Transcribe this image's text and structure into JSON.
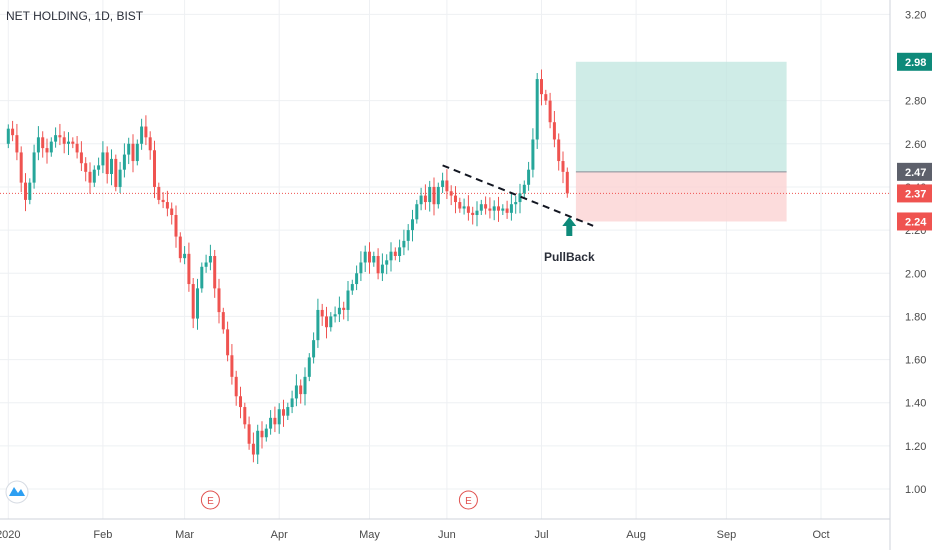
{
  "chart_data": {
    "type": "candlestick",
    "title": "NET HOLDING, 1D, BIST",
    "y_ticks": [
      "1.00",
      "1.20",
      "1.40",
      "1.60",
      "1.80",
      "2.00",
      "2.20",
      "2.40",
      "2.60",
      "2.80",
      "3.20"
    ],
    "y_tick_values": [
      1.0,
      1.2,
      1.4,
      1.6,
      1.8,
      2.0,
      2.2,
      2.4,
      2.6,
      2.8,
      3.2
    ],
    "ylim": [
      0.94,
      3.22
    ],
    "x_ticks": [
      {
        "label": "2020",
        "bar": 0
      },
      {
        "label": "Feb",
        "bar": 22
      },
      {
        "label": "Mar",
        "bar": 41
      },
      {
        "label": "Apr",
        "bar": 63
      },
      {
        "label": "May",
        "bar": 84
      },
      {
        "label": "Jun",
        "bar": 102
      },
      {
        "label": "Jul",
        "bar": 124
      },
      {
        "label": "Aug",
        "bar": 146
      },
      {
        "label": "Sep",
        "bar": 167
      },
      {
        "label": "Oct",
        "bar": 189
      }
    ],
    "price_badges": [
      {
        "label": "2.98",
        "value": 2.98,
        "color": "#0e8a7a"
      },
      {
        "label": "2.47",
        "value": 2.47,
        "color": "#5d606b"
      },
      {
        "label": "2.37",
        "value": 2.37,
        "color": "#ef5350"
      },
      {
        "label": "2.24",
        "value": 2.24,
        "color": "#ef5350"
      }
    ],
    "last_price": 2.37,
    "position": {
      "entry": 2.47,
      "target": 2.98,
      "stop": 2.24,
      "start_bar": 133,
      "end_bar": 182
    },
    "trendline": {
      "from_bar": 102,
      "from_value": 2.5,
      "to_bar": 137,
      "to_value": 2.22
    },
    "annotation": {
      "text": "PullBack",
      "bar": 131,
      "value": 2.14
    },
    "earnings_markers": [
      {
        "label": "E",
        "bar": 48
      },
      {
        "label": "E",
        "bar": 108
      }
    ],
    "bar_start_offset": 1,
    "close": [
      2.67,
      2.64,
      2.56,
      2.42,
      2.34,
      2.42,
      2.56,
      2.63,
      2.58,
      2.56,
      2.61,
      2.64,
      2.63,
      2.6,
      2.61,
      2.6,
      2.56,
      2.51,
      2.47,
      2.42,
      2.48,
      2.5,
      2.56,
      2.46,
      2.53,
      2.4,
      2.48,
      2.55,
      2.6,
      2.52,
      2.6,
      2.68,
      2.63,
      2.57,
      2.4,
      2.34,
      2.33,
      2.3,
      2.27,
      2.17,
      2.07,
      2.09,
      1.95,
      1.79,
      1.93,
      2.03,
      2.05,
      2.08,
      1.93,
      1.82,
      1.74,
      1.62,
      1.52,
      1.43,
      1.38,
      1.3,
      1.21,
      1.16,
      1.27,
      1.24,
      1.28,
      1.33,
      1.3,
      1.37,
      1.34,
      1.38,
      1.42,
      1.48,
      1.44,
      1.52,
      1.61,
      1.69,
      1.83,
      1.8,
      1.75,
      1.8,
      1.81,
      1.84,
      1.83,
      1.92,
      1.95,
      2.0,
      2.05,
      2.1,
      2.05,
      2.08,
      2.0,
      2.04,
      2.06,
      2.1,
      2.08,
      2.12,
      2.15,
      2.2,
      2.25,
      2.32,
      2.36,
      2.33,
      2.4,
      2.32,
      2.4,
      2.43,
      2.38,
      2.36,
      2.33,
      2.3,
      2.31,
      2.28,
      2.27,
      2.29,
      2.32,
      2.3,
      2.29,
      2.31,
      2.29,
      2.3,
      2.28,
      2.32,
      2.33,
      2.37,
      2.41,
      2.48,
      2.62,
      2.9,
      2.83,
      2.8,
      2.7,
      2.62,
      2.52,
      2.47,
      2.37
    ],
    "open": [
      2.6,
      2.67,
      2.64,
      2.56,
      2.42,
      2.34,
      2.42,
      2.56,
      2.63,
      2.58,
      2.56,
      2.61,
      2.64,
      2.63,
      2.6,
      2.61,
      2.6,
      2.56,
      2.51,
      2.47,
      2.42,
      2.48,
      2.5,
      2.56,
      2.46,
      2.53,
      2.4,
      2.48,
      2.55,
      2.6,
      2.52,
      2.6,
      2.68,
      2.63,
      2.57,
      2.4,
      2.34,
      2.33,
      2.3,
      2.27,
      2.17,
      2.07,
      2.09,
      1.95,
      1.79,
      1.93,
      2.03,
      2.05,
      2.08,
      1.93,
      1.82,
      1.74,
      1.62,
      1.52,
      1.43,
      1.38,
      1.3,
      1.21,
      1.16,
      1.27,
      1.24,
      1.28,
      1.33,
      1.3,
      1.37,
      1.34,
      1.38,
      1.42,
      1.48,
      1.44,
      1.52,
      1.61,
      1.69,
      1.83,
      1.8,
      1.75,
      1.8,
      1.81,
      1.84,
      1.83,
      1.92,
      1.95,
      2.0,
      2.05,
      2.1,
      2.05,
      2.08,
      2.0,
      2.04,
      2.06,
      2.1,
      2.08,
      2.12,
      2.15,
      2.2,
      2.25,
      2.32,
      2.36,
      2.33,
      2.4,
      2.32,
      2.4,
      2.43,
      2.38,
      2.36,
      2.33,
      2.3,
      2.31,
      2.28,
      2.27,
      2.29,
      2.32,
      2.3,
      2.29,
      2.31,
      2.29,
      2.3,
      2.28,
      2.32,
      2.33,
      2.37,
      2.41,
      2.48,
      2.62,
      2.9,
      2.83,
      2.8,
      2.7,
      2.62,
      2.52,
      2.47
    ]
  }
}
